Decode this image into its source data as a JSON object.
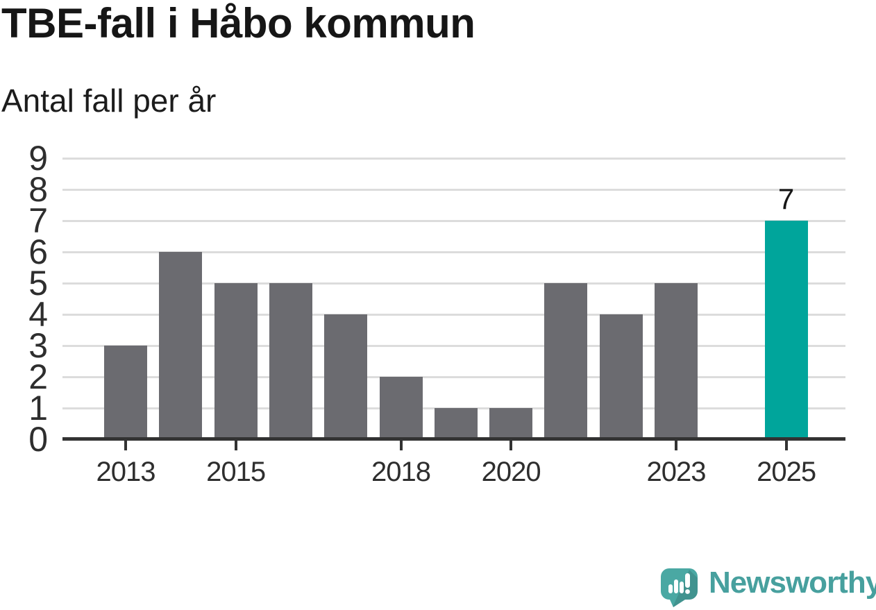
{
  "header": {
    "title": "TBE-fall i Håbo kommun",
    "subtitle": "Antal fall per år"
  },
  "chart_data": {
    "type": "bar",
    "title": "TBE-fall i Håbo kommun",
    "subtitle": "Antal fall per år",
    "categories": [
      2013,
      2014,
      2015,
      2016,
      2017,
      2018,
      2019,
      2020,
      2021,
      2022,
      2023,
      2024,
      2025
    ],
    "values": [
      3,
      6,
      5,
      5,
      4,
      2,
      1,
      1,
      5,
      4,
      5,
      0,
      7
    ],
    "highlight_category": 2025,
    "highlight_value_label": "7",
    "x_tick_labels": [
      "2013",
      "2015",
      "2018",
      "2020",
      "2023",
      "2025"
    ],
    "y_ticks": [
      0,
      1,
      2,
      3,
      4,
      5,
      6,
      7,
      8,
      9
    ],
    "ylim": [
      0,
      9
    ],
    "xlabel": "",
    "ylabel": "Antal fall",
    "grid": "horizontal",
    "legend": "none",
    "bar_color": "#6b6b70",
    "highlight_color": "#00a59b",
    "gridline_color": "#dcdcdc",
    "axis_color": "#333333",
    "label_color": "#2e2e2e"
  },
  "footer": {
    "brand": "Newsworthy",
    "brand_color": "#47a09e",
    "logo_icon": "newsworthy-speech-bubble-bar-chart-icon",
    "logo_bubble_color": "#4aa8a3"
  }
}
